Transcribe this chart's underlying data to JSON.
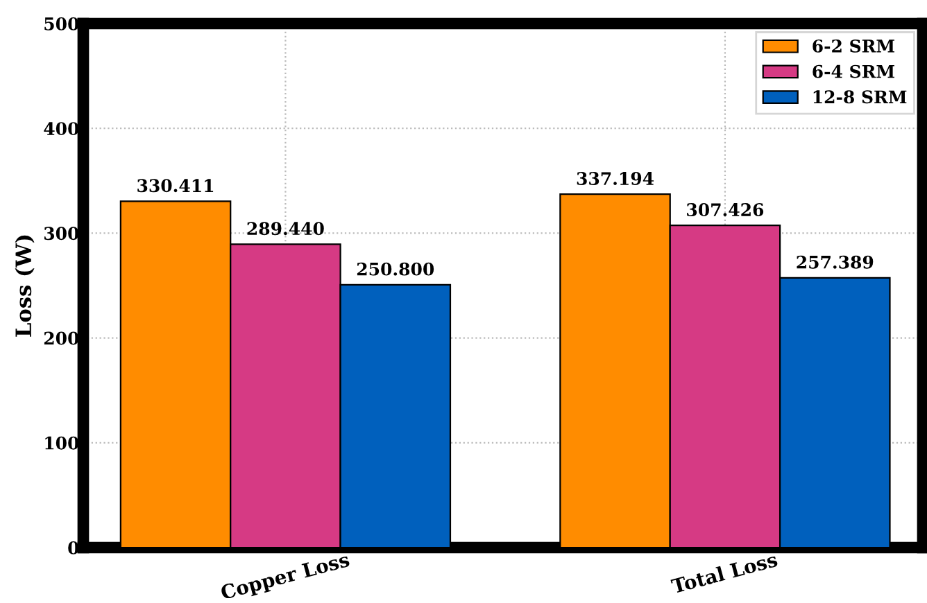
{
  "chart_data": {
    "type": "bar",
    "ylabel": "Loss (W)",
    "categories": [
      "Copper Loss",
      "Total Loss"
    ],
    "series": [
      {
        "name": "6-2 SRM",
        "color": "#ff8c00",
        "values": [
          330.411,
          337.194
        ],
        "value_labels": [
          "330.411",
          "337.194"
        ]
      },
      {
        "name": "6-4 SRM",
        "color": "#d63a84",
        "values": [
          289.44,
          307.426
        ],
        "value_labels": [
          "289.440",
          "307.426"
        ]
      },
      {
        "name": "12-8 SRM",
        "color": "#0060bd",
        "values": [
          250.8,
          257.389
        ],
        "value_labels": [
          "250.800",
          "257.389"
        ]
      }
    ],
    "ylim": [
      0,
      500
    ],
    "yticks": [
      0,
      100,
      200,
      300,
      400,
      500
    ],
    "grid": true,
    "legend": "top right"
  }
}
